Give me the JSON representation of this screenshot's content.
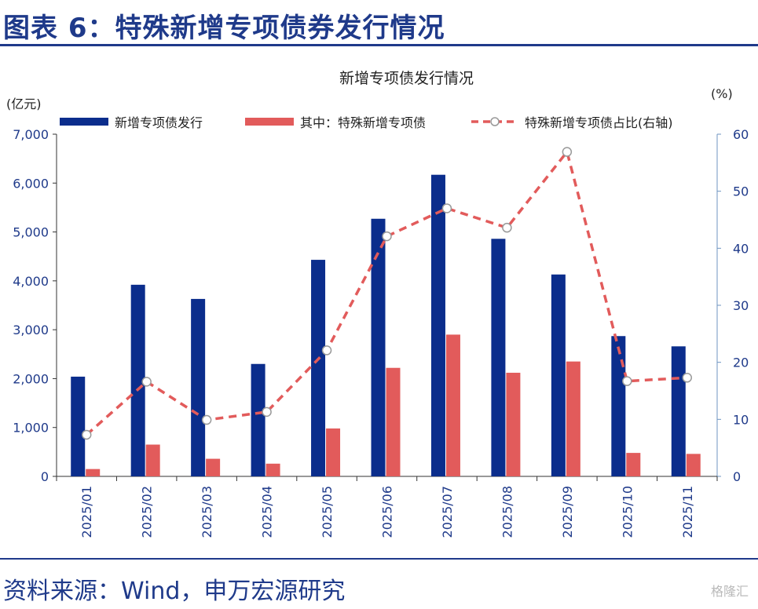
{
  "figure_title": "图表 6：特殊新增专项债券发行情况",
  "source_text": "资料来源：Wind，申万宏源研究",
  "watermark_text": "格隆汇",
  "colors": {
    "bar_primary": "#0b2d8c",
    "bar_secondary": "#e25b5b",
    "line": "#e25b5b",
    "title_blue": "#1f3a8a",
    "axis_right": "#6f95c2"
  },
  "chart_data": {
    "type": "bar",
    "title": "新增专项债发行情况",
    "categories": [
      "2025/01",
      "2025/02",
      "2025/03",
      "2025/04",
      "2025/05",
      "2025/06",
      "2025/07",
      "2025/08",
      "2025/09",
      "2025/10",
      "2025/11"
    ],
    "series": [
      {
        "name": "新增专项债发行",
        "type": "bar",
        "axis": "left",
        "values": [
          2040,
          3920,
          3630,
          2300,
          4430,
          5270,
          6170,
          4860,
          4130,
          2870,
          2660
        ]
      },
      {
        "name": "其中：特殊新增专项债",
        "type": "bar",
        "axis": "left",
        "values": [
          150,
          650,
          360,
          260,
          980,
          2220,
          2900,
          2120,
          2350,
          480,
          460
        ]
      },
      {
        "name": "特殊新增专项债占比(右轴)",
        "type": "line",
        "style": "dashed",
        "marker": "hollow-circle",
        "axis": "right",
        "values": [
          7.3,
          16.6,
          9.9,
          11.3,
          22.1,
          42.1,
          47.0,
          43.6,
          56.9,
          16.7,
          17.3
        ]
      }
    ],
    "ylabel_left": "(亿元)",
    "ylabel_right": "(%)",
    "ylim_left": [
      0,
      7000
    ],
    "ylim_right": [
      0,
      60
    ],
    "yticks_left": [
      "0",
      "1,000",
      "2,000",
      "3,000",
      "4,000",
      "5,000",
      "6,000",
      "7,000"
    ],
    "yticks_right": [
      "0",
      "10",
      "20",
      "30",
      "40",
      "50",
      "60"
    ],
    "grid": false,
    "legend_position": "top"
  }
}
